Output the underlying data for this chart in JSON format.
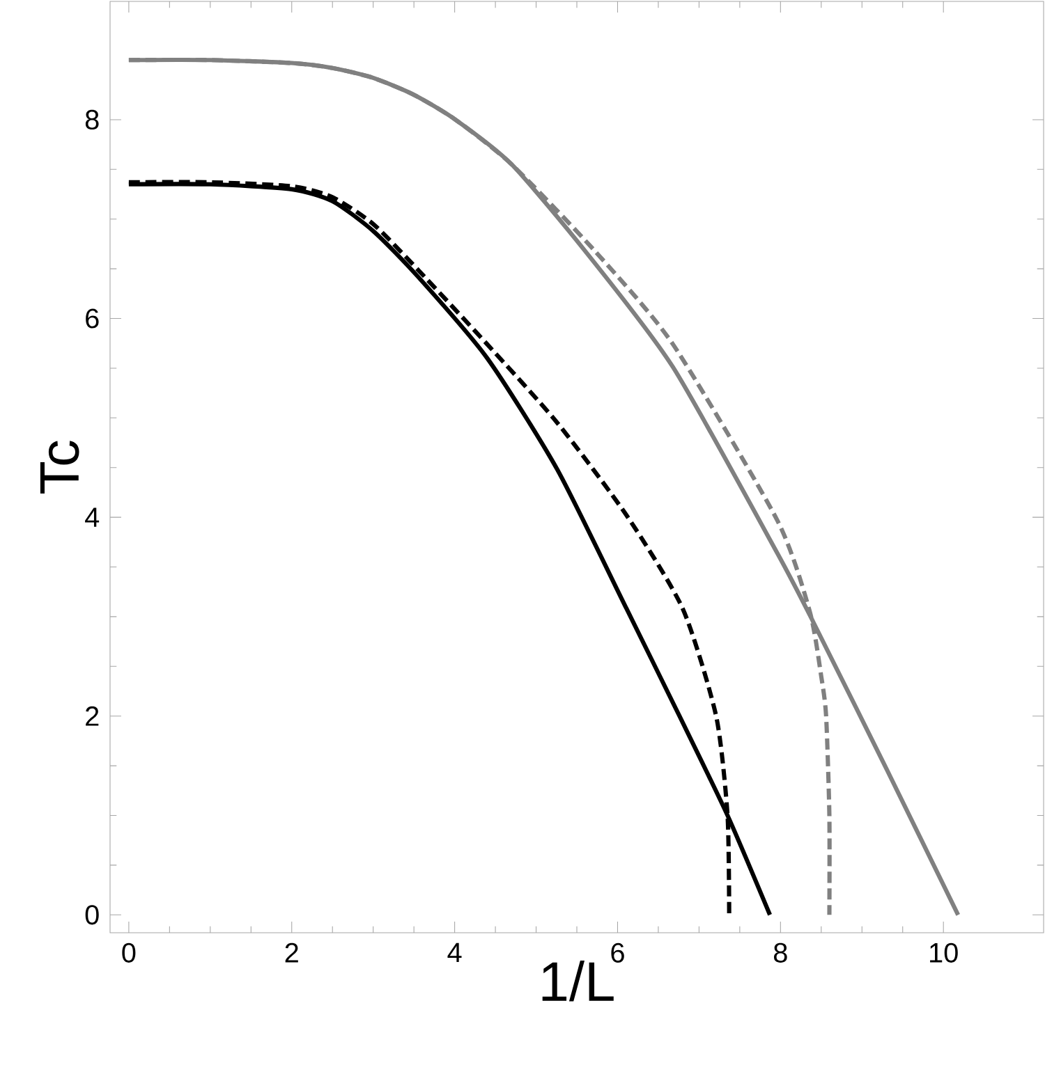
{
  "chart_data": {
    "type": "line",
    "xlabel": "1/L",
    "ylabel": "Tc",
    "xlim": [
      -0.23,
      11.23
    ],
    "ylim": [
      -0.18,
      9.19
    ],
    "xticks": [
      0,
      2,
      4,
      6,
      8,
      10
    ],
    "yticks": [
      0,
      2,
      4,
      6,
      8
    ],
    "grid": false,
    "series": [
      {
        "color": "#808080",
        "line_style": "solid",
        "x": [
          0,
          1,
          2,
          2.5,
          3,
          3.5,
          4.01,
          4.7,
          5.6,
          6.68,
          7.96,
          8.4,
          9.3,
          10.18
        ],
        "values": [
          8.6,
          8.6,
          8.57,
          8.52,
          8.42,
          8.25,
          8,
          7.55,
          6.68,
          5.51,
          3.64,
          2.95,
          1.47,
          0
        ]
      },
      {
        "color": "#808080",
        "line_style": "dashed",
        "x": [
          0,
          1,
          2,
          2.5,
          3,
          3.5,
          4.01,
          4.7,
          5.72,
          6.68,
          7.96,
          8.36,
          8.5,
          8.56,
          8.6,
          8.6
        ],
        "values": [
          8.6,
          8.6,
          8.57,
          8.52,
          8.42,
          8.25,
          8,
          7.55,
          6.68,
          5.74,
          3.97,
          3.05,
          2.4,
          2,
          1,
          0
        ]
      },
      {
        "color": "#000000",
        "line_style": "solid",
        "x": [
          0,
          1,
          2,
          2.5,
          3,
          3.55,
          4.4,
          5.26,
          6.11,
          6.76,
          7.35,
          7.87
        ],
        "values": [
          7.35,
          7.35,
          7.3,
          7.18,
          6.88,
          6.42,
          5.6,
          4.48,
          3.08,
          2,
          1,
          0
        ]
      },
      {
        "color": "#000000",
        "line_style": "dashed",
        "x": [
          0,
          1,
          2,
          2.5,
          3,
          3.55,
          4.4,
          5.26,
          6.11,
          6.8,
          7.21,
          7.35,
          7.37
        ],
        "values": [
          7.37,
          7.37,
          7.33,
          7.22,
          6.95,
          6.49,
          5.74,
          4.95,
          4.02,
          3.08,
          2,
          1,
          0
        ]
      }
    ]
  }
}
